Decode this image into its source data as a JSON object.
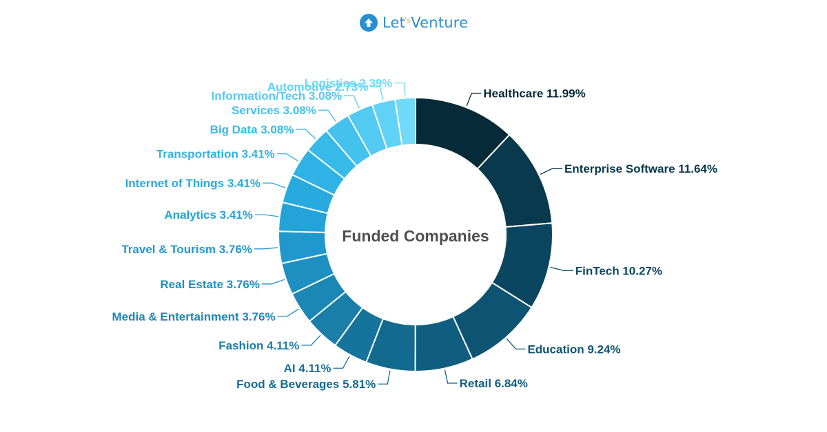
{
  "brand": {
    "name_part1": "Let",
    "name_accent": "'s",
    "name_part2": "Venture",
    "accent_color": "#f5a623",
    "brand_color": "#2a8fd0",
    "icon": "up-arrow-icon"
  },
  "chart_data": {
    "type": "pie",
    "style": "donut",
    "title": "Funded Companies",
    "series": [
      {
        "label": "Healthcare",
        "value": 11.99,
        "value_label": "11.99%",
        "color": "#062a38"
      },
      {
        "label": "Enterprise Software",
        "value": 11.64,
        "value_label": "11.64%",
        "color": "#08394d"
      },
      {
        "label": "FinTech",
        "value": 10.27,
        "value_label": "10.27%",
        "color": "#0b4660"
      },
      {
        "label": "Education",
        "value": 9.24,
        "value_label": "9.24%",
        "color": "#0d5473"
      },
      {
        "label": "Retail",
        "value": 6.84,
        "value_label": "6.84%",
        "color": "#0f5e80"
      },
      {
        "label": "Food & Beverages",
        "value": 5.81,
        "value_label": "5.81%",
        "color": "#136a8f"
      },
      {
        "label": "AI",
        "value": 4.11,
        "value_label": "4.11%",
        "color": "#16739b"
      },
      {
        "label": "Fashion",
        "value": 4.11,
        "value_label": "4.11%",
        "color": "#197ea8"
      },
      {
        "label": "Media & Entertainment",
        "value": 3.76,
        "value_label": "3.76%",
        "color": "#1b87b5"
      },
      {
        "label": "Real Estate",
        "value": 3.76,
        "value_label": "3.76%",
        "color": "#1d8fc1"
      },
      {
        "label": "Travel & Tourism",
        "value": 3.76,
        "value_label": "3.76%",
        "color": "#2098cd"
      },
      {
        "label": "Analytics",
        "value": 3.41,
        "value_label": "3.41%",
        "color": "#23a3d8"
      },
      {
        "label": "Internet of Things",
        "value": 3.41,
        "value_label": "3.41%",
        "color": "#28aadf"
      },
      {
        "label": "Transportation",
        "value": 3.41,
        "value_label": "3.41%",
        "color": "#2fb2e5"
      },
      {
        "label": "Big Data",
        "value": 3.08,
        "value_label": "3.08%",
        "color": "#38bae9"
      },
      {
        "label": "Services",
        "value": 3.08,
        "value_label": "3.08%",
        "color": "#44c2ed"
      },
      {
        "label": "Information/Tech",
        "value": 3.08,
        "value_label": "3.08%",
        "color": "#52caf1"
      },
      {
        "label": "Automotive",
        "value": 2.73,
        "value_label": "2.73%",
        "color": "#60d2f5"
      },
      {
        "label": "Logistics",
        "value": 2.39,
        "value_label": "2.39%",
        "color": "#70daf8"
      }
    ]
  }
}
